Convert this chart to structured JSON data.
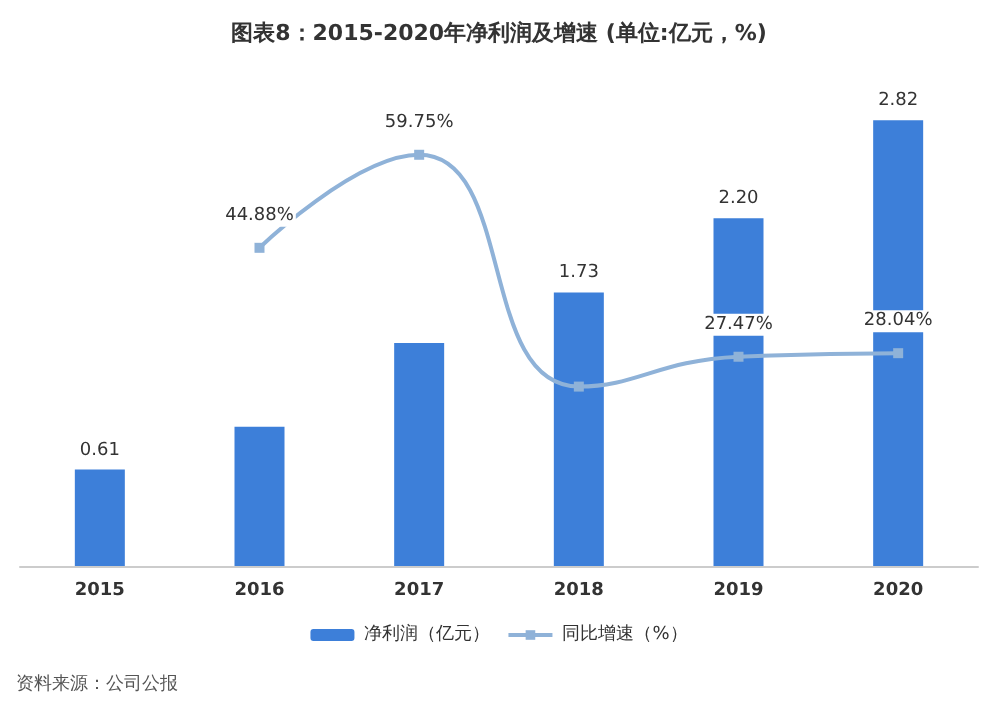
{
  "chart_data": {
    "type": "bar",
    "title": "图表8：2015-2020年净利润及增速 (单位:亿元，%)",
    "categories": [
      "2015",
      "2016",
      "2017",
      "2018",
      "2019",
      "2020"
    ],
    "series": [
      {
        "name": "净利润（亿元）",
        "color": "#3d7fd9",
        "values": [
          0.61,
          0.88,
          1.41,
          1.73,
          2.2,
          2.82
        ],
        "value_labels": [
          "0.61",
          null,
          null,
          "1.73",
          "2.20",
          "2.82"
        ]
      },
      {
        "name": "同比增速（%）",
        "type": "line",
        "axis": "y2",
        "color": "#8fb2d8",
        "values": [
          null,
          44.88,
          59.75,
          22.7,
          27.47,
          28.04
        ],
        "value_labels": [
          null,
          "44.88%",
          "59.75%",
          null,
          "27.47%",
          "28.04%"
        ]
      }
    ],
    "legend": "bottom",
    "marker": "square",
    "annotations": [
      "资料来源：公司公报"
    ]
  }
}
